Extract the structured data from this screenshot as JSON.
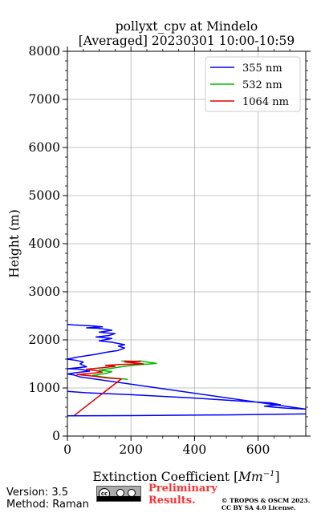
{
  "title_line1": "pollyxt_cpv at Mindelo",
  "title_line2": "[Averaged] 20230301 10:00-10:59",
  "footer": {
    "version": "Version: 3.5",
    "method": "Method: Raman",
    "preliminary_line1": "Preliminary",
    "preliminary_line2": "Results.",
    "copyright_line1": "© TROPOS & OSCM 2023.",
    "copyright_line2": "CC BY SA 4.0 License.",
    "license_badge_text": "cc",
    "license_badge_icons": [
      "creative-commons-icon",
      "by-icon",
      "sa-icon"
    ]
  },
  "chart_data": {
    "type": "line",
    "xlabel_prefix": "Extinction Coefficient [",
    "xlabel_unit_base": "Mm",
    "xlabel_unit_exp": "−1",
    "xlabel_suffix": "]",
    "ylabel": "Height (m)",
    "xlim": [
      0,
      750
    ],
    "ylim": [
      0,
      8000
    ],
    "xticks": [
      0,
      200,
      400,
      600
    ],
    "yticks": [
      0,
      1000,
      2000,
      3000,
      4000,
      5000,
      6000,
      7000,
      8000
    ],
    "grid": true,
    "legend_position": "top-right",
    "series": [
      {
        "name": "355 nm",
        "color": "#0000ff",
        "points": [
          [
            0,
            930
          ],
          [
            60,
            900
          ],
          [
            200,
            860
          ],
          [
            400,
            790
          ],
          [
            560,
            720
          ],
          [
            640,
            690
          ],
          [
            670,
            650
          ],
          [
            650,
            640
          ],
          [
            620,
            620
          ],
          [
            650,
            600
          ],
          [
            690,
            580
          ],
          [
            750,
            560
          ],
          [
            40,
            1230
          ],
          [
            20,
            1270
          ],
          [
            0,
            1290
          ],
          [
            30,
            1320
          ],
          [
            70,
            1350
          ],
          [
            40,
            1390
          ],
          [
            0,
            1400
          ],
          [
            60,
            1440
          ],
          [
            50,
            1470
          ],
          [
            40,
            1500
          ],
          [
            50,
            1540
          ],
          [
            30,
            1570
          ],
          [
            0,
            1600
          ],
          [
            30,
            1640
          ],
          [
            60,
            1670
          ],
          [
            90,
            1700
          ],
          [
            120,
            1740
          ],
          [
            160,
            1780
          ],
          [
            180,
            1830
          ],
          [
            160,
            1870
          ],
          [
            180,
            1900
          ],
          [
            140,
            1950
          ],
          [
            100,
            1980
          ],
          [
            140,
            2030
          ],
          [
            90,
            2060
          ],
          [
            130,
            2090
          ],
          [
            150,
            2130
          ],
          [
            100,
            2160
          ],
          [
            140,
            2200
          ],
          [
            100,
            2240
          ],
          [
            60,
            2250
          ],
          [
            110,
            2270
          ],
          [
            80,
            2290
          ],
          [
            50,
            2300
          ],
          [
            20,
            2310
          ],
          [
            0,
            2320
          ]
        ]
      },
      {
        "name": "532 nm",
        "color": "#00bb00",
        "points": [
          [
            190,
            1180
          ],
          [
            150,
            1200
          ],
          [
            110,
            1230
          ],
          [
            80,
            1260
          ],
          [
            120,
            1300
          ],
          [
            140,
            1340
          ],
          [
            100,
            1370
          ],
          [
            130,
            1400
          ],
          [
            180,
            1450
          ],
          [
            220,
            1480
          ],
          [
            260,
            1500
          ],
          [
            280,
            1510
          ],
          [
            250,
            1540
          ],
          [
            230,
            1560
          ],
          [
            200,
            1550
          ],
          [
            170,
            1560
          ]
        ]
      },
      {
        "name": "1064 nm",
        "color": "#dd0000",
        "points": [
          [
            0,
            420
          ],
          [
            20,
            420
          ],
          [
            170,
            1190
          ],
          [
            120,
            1210
          ],
          [
            90,
            1240
          ],
          [
            60,
            1260
          ],
          [
            30,
            1280
          ],
          [
            70,
            1300
          ],
          [
            110,
            1330
          ],
          [
            90,
            1360
          ],
          [
            60,
            1390
          ],
          [
            110,
            1420
          ],
          [
            150,
            1450
          ],
          [
            120,
            1470
          ],
          [
            170,
            1490
          ],
          [
            240,
            1500
          ],
          [
            210,
            1520
          ],
          [
            180,
            1540
          ],
          [
            230,
            1550
          ],
          [
            180,
            1560
          ]
        ]
      },
      {
        "name": "",
        "color": "#0000ff",
        "points": [
          [
            0,
            420
          ],
          [
            200,
            425
          ],
          [
            500,
            440
          ],
          [
            750,
            460
          ]
        ]
      }
    ]
  }
}
